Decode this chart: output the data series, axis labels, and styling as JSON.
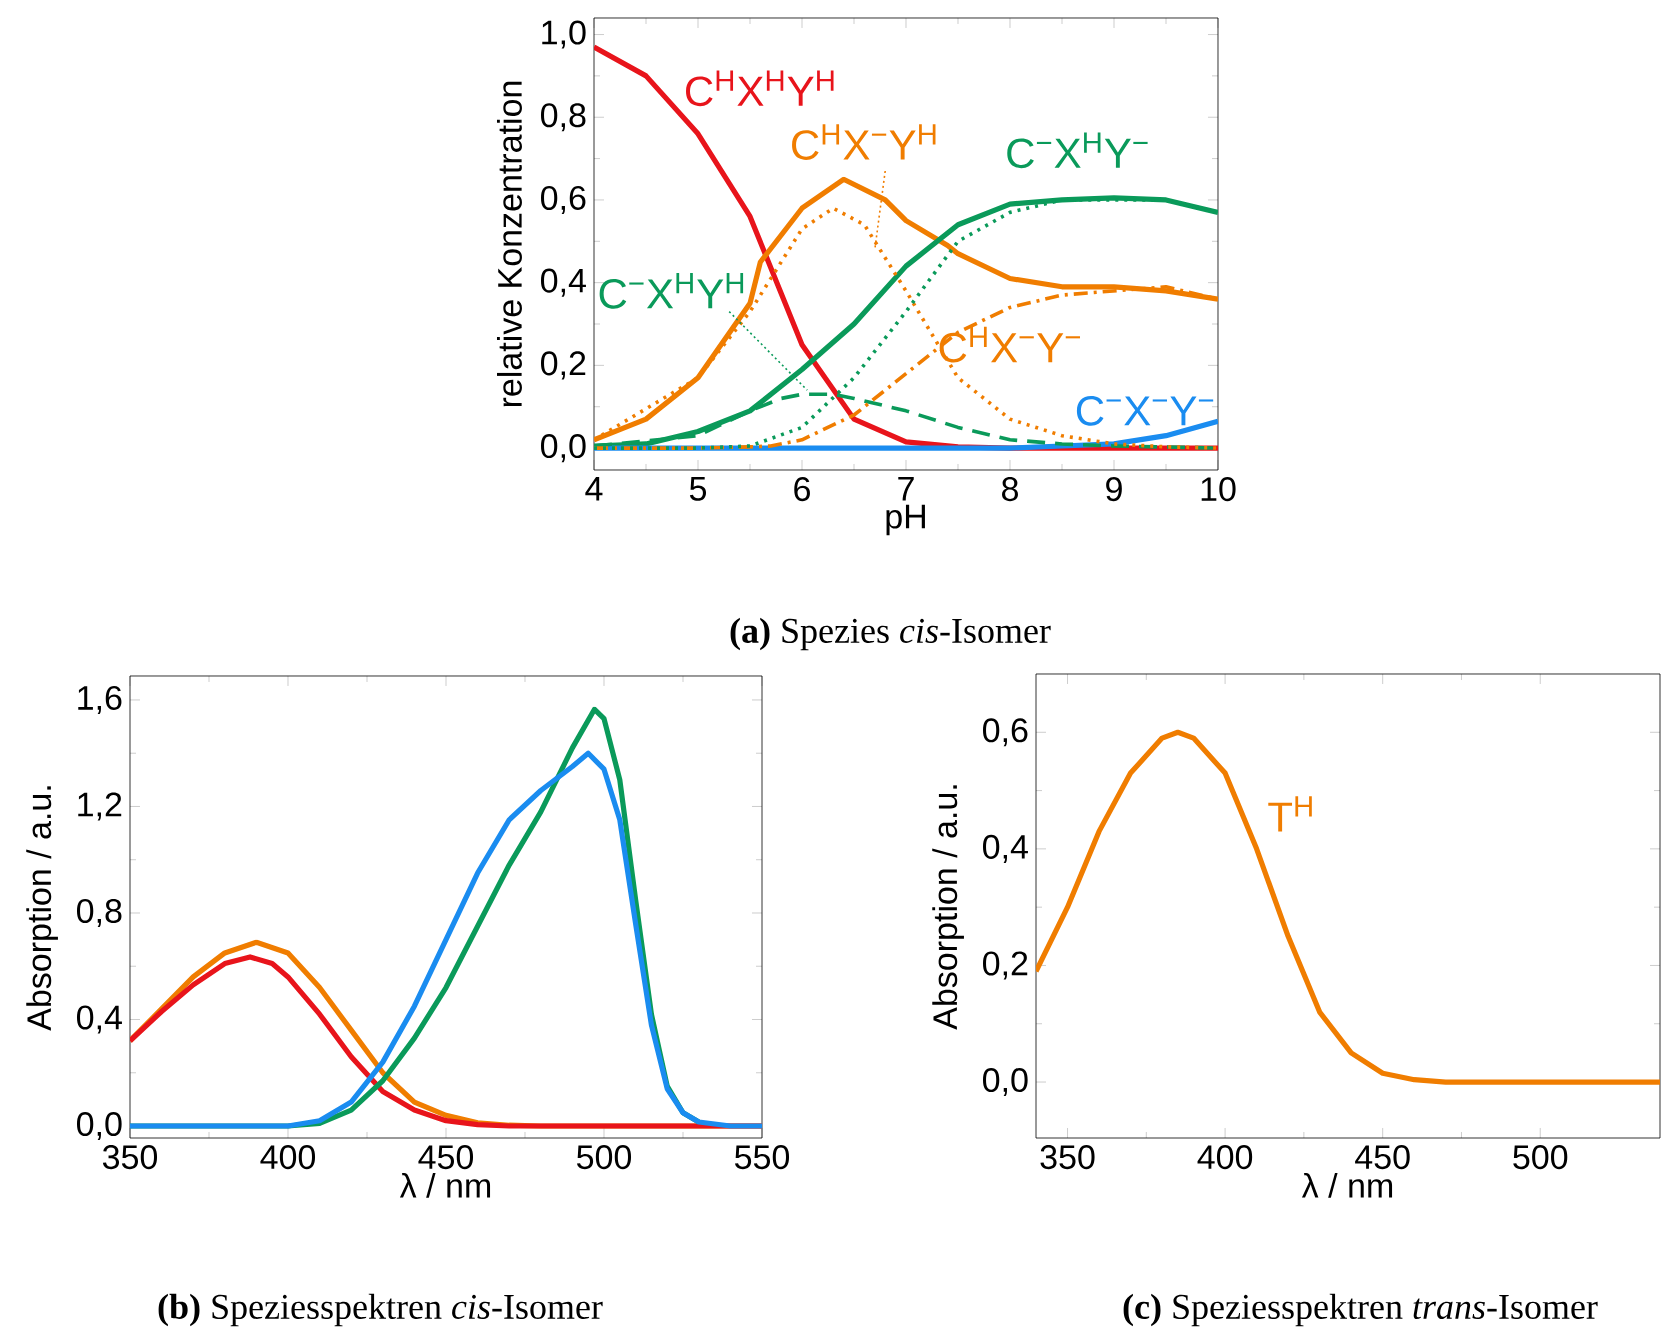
{
  "chart_data": [
    {
      "type": "line",
      "title": "**(a)** Spezies *cis*-Isomer",
      "xlabel": "pH",
      "ylabel": "relative Konzentration",
      "xlim": [
        4,
        10
      ],
      "ylim": [
        -0.053,
        1.04
      ],
      "xticks": [
        4,
        5,
        6,
        7,
        8,
        9,
        10
      ],
      "yticks": [
        {
          "value": 0,
          "label": "0,0"
        },
        {
          "value": 0.2,
          "label": "0,2"
        },
        {
          "value": 0.4,
          "label": "0,4"
        },
        {
          "value": 0.6,
          "label": "0,6"
        },
        {
          "value": 0.8,
          "label": "0,8"
        },
        {
          "value": 1.0,
          "label": "1,0"
        }
      ],
      "series": [
        {
          "name": "C$^{H}$X$^{H}$Y$^{H}$",
          "color": "#e8141b",
          "line_style": "solid",
          "x": [
            4,
            4.5,
            5,
            5.5,
            6,
            6.5,
            7,
            7.5,
            8,
            9,
            10
          ],
          "values": [
            0.97,
            0.9,
            0.76,
            0.56,
            0.25,
            0.07,
            0.015,
            0.003,
            0,
            0,
            0
          ]
        },
        {
          "color": "#f07d00",
          "line_style": "solid",
          "x": [
            4,
            4.5,
            5,
            5.5,
            5.6,
            6,
            6.4,
            6.8,
            7,
            7.4,
            7.5,
            8,
            8.5,
            9,
            9.5,
            10
          ],
          "values": [
            0.02,
            0.07,
            0.17,
            0.35,
            0.45,
            0.58,
            0.65,
            0.6,
            0.55,
            0.49,
            0.47,
            0.41,
            0.39,
            0.39,
            0.38,
            0.36
          ]
        },
        {
          "color": "#0a9a5a",
          "line_style": "solid",
          "x": [
            4,
            4.5,
            5,
            5.5,
            6,
            6.5,
            7,
            7.5,
            8,
            8.5,
            9,
            9.5,
            10
          ],
          "values": [
            0.005,
            0.01,
            0.04,
            0.09,
            0.19,
            0.3,
            0.44,
            0.54,
            0.59,
            0.6,
            0.605,
            0.6,
            0.57
          ]
        },
        {
          "name": "C$^{−}$X$^{−}$Y$^{−}$",
          "color": "#1a8cf0",
          "line_style": "solid",
          "x": [
            4,
            6,
            8,
            8.5,
            9,
            9.5,
            10
          ],
          "values": [
            0,
            0,
            0,
            0.005,
            0.01,
            0.03,
            0.065
          ]
        },
        {
          "name": "C$^{−}$X$^{H}$Y$^{H}$",
          "color": "#0a9a5a",
          "line_style": "dashed",
          "x": [
            4,
            5,
            5.5,
            5.8,
            6,
            6.3,
            6.5,
            7,
            7.5,
            8,
            8.5,
            9,
            10
          ],
          "values": [
            0.005,
            0.03,
            0.09,
            0.12,
            0.13,
            0.13,
            0.12,
            0.09,
            0.05,
            0.02,
            0.01,
            0.005,
            0
          ]
        },
        {
          "name": "C$^{H}$X$^{−}$Y$^{H}$",
          "color": "#f07d00",
          "line_style": "dotted",
          "x": [
            4,
            5,
            5.5,
            6,
            6.3,
            6.6,
            7,
            7.5,
            8,
            8.5,
            9,
            9.5,
            10
          ],
          "values": [
            0.02,
            0.17,
            0.33,
            0.53,
            0.58,
            0.54,
            0.38,
            0.17,
            0.07,
            0.03,
            0.01,
            0.003,
            0
          ]
        },
        {
          "name": "C$^{H}$X$^{−}$Y$^{−}$",
          "color": "#f07d00",
          "line_style": "dashdotted",
          "x": [
            4,
            5,
            5.5,
            5.7,
            6,
            6.5,
            7,
            7.5,
            8,
            8.5,
            9,
            9.5,
            10
          ],
          "values": [
            0,
            0,
            0.003,
            0.005,
            0.02,
            0.08,
            0.18,
            0.28,
            0.34,
            0.37,
            0.38,
            0.39,
            0.36
          ]
        },
        {
          "name": "C$^{−}$X$^{H}$Y$^{−}$",
          "color": "#0a9a5a",
          "line_style": "dotted",
          "x": [
            4,
            5,
            5.5,
            6,
            6.5,
            7,
            7.5,
            8,
            8.5,
            9,
            9.5,
            10
          ],
          "values": [
            0,
            0,
            0.005,
            0.05,
            0.17,
            0.33,
            0.5,
            0.57,
            0.6,
            0.6,
            0.6,
            0.57
          ]
        }
      ]
    },
    {
      "type": "line",
      "title": "**(b)** Speziesspektren *cis*-Isomer",
      "xlabel": "λ / nm",
      "ylabel": "Absorption / a.u.",
      "xlim": [
        350,
        550
      ],
      "ylim": [
        -0.045,
        1.69
      ],
      "xticks": [
        350,
        400,
        450,
        500,
        550
      ],
      "yticks": [
        {
          "value": 0,
          "label": "0,0"
        },
        {
          "value": 0.4,
          "label": "0,4"
        },
        {
          "value": 0.8,
          "label": "0,8"
        },
        {
          "value": 1.2,
          "label": "1,2"
        },
        {
          "value": 1.6,
          "label": "1,6"
        }
      ],
      "series": [
        {
          "color": "#f07d00",
          "line_style": "solid",
          "x": [
            350,
            360,
            370,
            380,
            390,
            400,
            410,
            420,
            430,
            440,
            450,
            460,
            470,
            480,
            550
          ],
          "values": [
            0.32,
            0.44,
            0.56,
            0.65,
            0.69,
            0.65,
            0.52,
            0.36,
            0.2,
            0.09,
            0.04,
            0.012,
            0.003,
            0,
            0
          ]
        },
        {
          "color": "#e8141b",
          "line_style": "solid",
          "x": [
            350,
            360,
            370,
            380,
            388,
            395,
            400,
            410,
            420,
            430,
            440,
            450,
            460,
            470,
            550
          ],
          "values": [
            0.32,
            0.43,
            0.53,
            0.61,
            0.635,
            0.61,
            0.56,
            0.42,
            0.26,
            0.13,
            0.06,
            0.02,
            0.005,
            0,
            0
          ]
        },
        {
          "color": "#0a9a5a",
          "line_style": "solid",
          "x": [
            350,
            400,
            410,
            420,
            430,
            440,
            450,
            460,
            470,
            480,
            490,
            497,
            500,
            505,
            510,
            515,
            520,
            525,
            530
          ],
          "values": [
            0,
            0,
            0.01,
            0.06,
            0.17,
            0.33,
            0.52,
            0.75,
            0.98,
            1.18,
            1.42,
            1.565,
            1.53,
            1.3,
            0.85,
            0.42,
            0.15,
            0.05,
            0.015
          ]
        },
        {
          "color": "#1a8cf0",
          "line_style": "solid",
          "x": [
            350,
            400,
            410,
            420,
            430,
            440,
            450,
            460,
            470,
            480,
            490,
            495,
            500,
            505,
            510,
            515,
            520,
            525,
            530,
            540,
            550
          ],
          "values": [
            0,
            0,
            0.02,
            0.09,
            0.24,
            0.45,
            0.7,
            0.95,
            1.15,
            1.26,
            1.35,
            1.4,
            1.34,
            1.15,
            0.76,
            0.38,
            0.14,
            0.05,
            0.015,
            0,
            0
          ]
        }
      ]
    },
    {
      "type": "line",
      "title": "**(c)** Speziesspektren *trans*-Isomer",
      "xlabel": "λ / nm",
      "ylabel": "Absorption / a.u.",
      "xlim": [
        340,
        538
      ],
      "ylim": [
        -0.096,
        0.7
      ],
      "xticks": [
        350,
        400,
        450,
        500
      ],
      "yticks": [
        {
          "value": 0,
          "label": "0,0"
        },
        {
          "value": 0.2,
          "label": "0,2"
        },
        {
          "value": 0.4,
          "label": "0,4"
        },
        {
          "value": 0.6,
          "label": "0,6"
        }
      ],
      "series": [
        {
          "name": "T$^{H}$",
          "color": "#f07d00",
          "line_style": "solid",
          "x": [
            340,
            350,
            360,
            370,
            380,
            385,
            390,
            400,
            410,
            420,
            430,
            440,
            450,
            460,
            470,
            538
          ],
          "values": [
            0.19,
            0.3,
            0.43,
            0.53,
            0.59,
            0.6,
            0.59,
            0.53,
            0.4,
            0.25,
            0.12,
            0.05,
            0.015,
            0.004,
            0,
            0
          ]
        }
      ]
    }
  ]
}
